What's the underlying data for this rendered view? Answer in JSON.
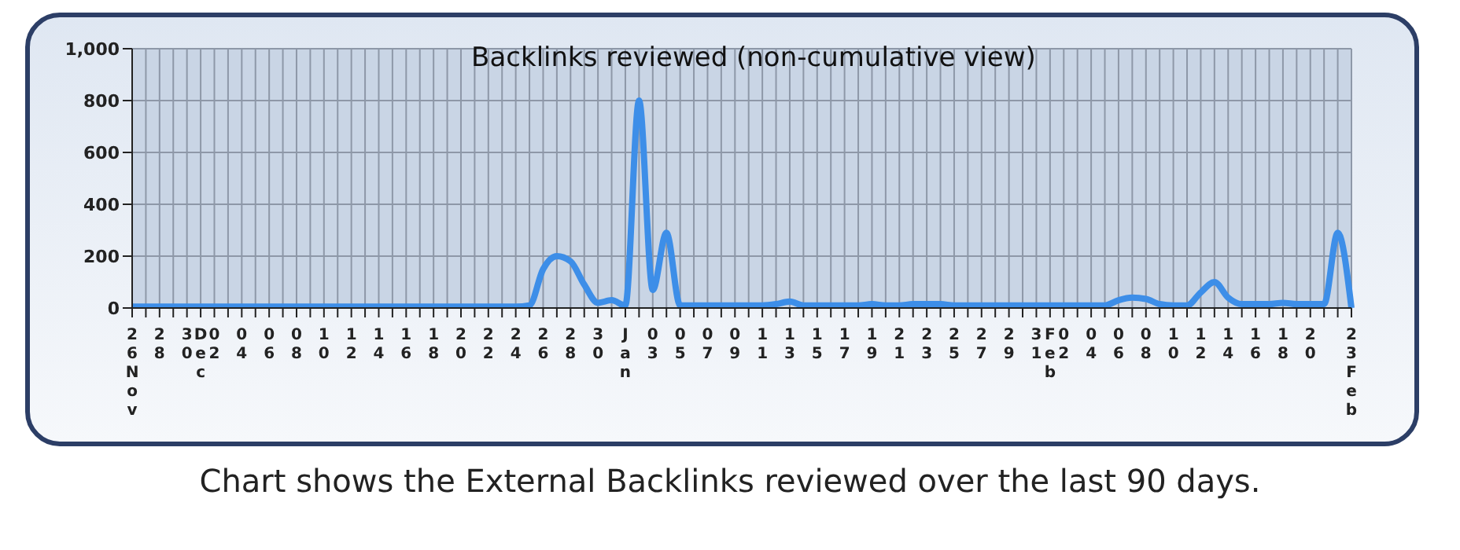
{
  "chart_data": {
    "type": "line",
    "title": "Backlinks reviewed (non-cumulative view)",
    "categories": [
      "26Nov",
      null,
      "28",
      null,
      "30",
      "Dec",
      "02",
      null,
      "04",
      null,
      "06",
      null,
      "08",
      null,
      "10",
      null,
      "12",
      null,
      "14",
      null,
      "16",
      null,
      "18",
      null,
      "20",
      null,
      "22",
      null,
      "24",
      null,
      "26",
      null,
      "28",
      null,
      "30",
      null,
      "Jan",
      null,
      "03",
      null,
      "05",
      null,
      "07",
      null,
      "09",
      null,
      "11",
      null,
      "13",
      null,
      "15",
      null,
      "17",
      null,
      "19",
      null,
      "21",
      null,
      "23",
      null,
      "25",
      null,
      "27",
      null,
      "29",
      null,
      "31",
      "Feb",
      "02",
      null,
      "04",
      null,
      "06",
      null,
      "08",
      null,
      "10",
      null,
      "12",
      null,
      "14",
      null,
      "16",
      null,
      "18",
      null,
      "20",
      null,
      null,
      "23Feb"
    ],
    "series": [
      {
        "color": "#3d8ee8",
        "values": [
          5,
          5,
          5,
          5,
          5,
          5,
          5,
          5,
          5,
          5,
          5,
          5,
          5,
          5,
          5,
          5,
          5,
          5,
          5,
          5,
          5,
          5,
          5,
          5,
          5,
          5,
          5,
          5,
          5,
          10,
          150,
          200,
          180,
          90,
          20,
          30,
          10,
          800,
          70,
          290,
          10,
          10,
          10,
          10,
          10,
          10,
          10,
          15,
          25,
          10,
          10,
          10,
          10,
          10,
          15,
          10,
          10,
          15,
          15,
          15,
          10,
          10,
          10,
          10,
          10,
          10,
          10,
          10,
          10,
          10,
          10,
          10,
          30,
          40,
          35,
          15,
          10,
          10,
          60,
          100,
          40,
          15,
          15,
          15,
          20,
          15,
          15,
          15,
          290,
          0
        ]
      }
    ],
    "ylim": [
      0,
      1000
    ],
    "yticks": [
      0,
      200,
      400,
      600,
      800,
      {
        "value": 1000,
        "label": "1,000"
      }
    ],
    "grid": true,
    "marker": "none",
    "line_style": "solid",
    "annotations": [
      "Chart shows the External Backlinks reviewed over the last 90 days."
    ]
  }
}
